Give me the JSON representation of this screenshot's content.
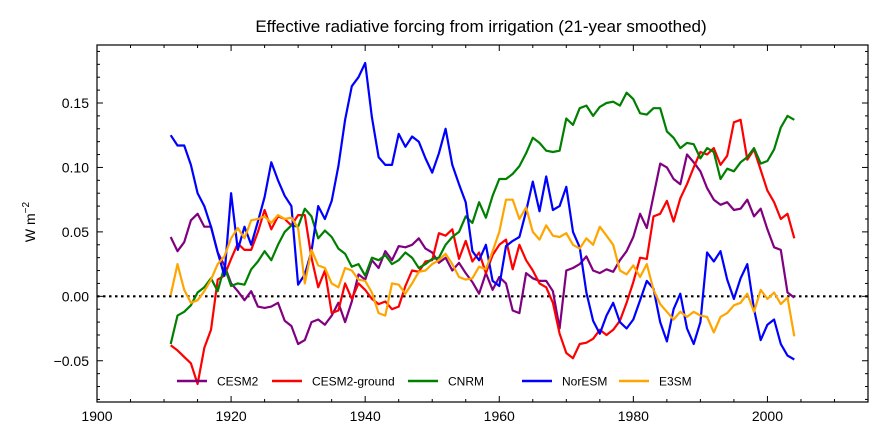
{
  "chart_data": {
    "type": "line",
    "title": "Effective radiative forcing from irrigation (21-year smoothed)",
    "xlabel": "",
    "ylabel": "W m",
    "ylabel_superscript": "−2",
    "xlim": [
      1900,
      2015
    ],
    "ylim": [
      -0.082,
      0.195
    ],
    "xticks": [
      1900,
      1920,
      1940,
      1960,
      1980,
      2000
    ],
    "xtick_labels": [
      "1900",
      "1920",
      "1940",
      "1960",
      "1980",
      "2000"
    ],
    "yticks": [
      -0.05,
      0.0,
      0.05,
      0.1,
      0.15
    ],
    "ytick_labels": [
      "−0.05",
      "0.00",
      "0.05",
      "0.10",
      "0.15"
    ],
    "grid": false,
    "legend_position": "bottom-center",
    "zero_line": {
      "y": 0,
      "style": "dotted",
      "color": "#000000"
    },
    "series": [
      {
        "name": "CESM2",
        "color": "#800080",
        "x": [
          1911,
          1912,
          1913,
          1914,
          1915,
          1916,
          1917,
          1918,
          1919,
          1920,
          1921,
          1922,
          1923,
          1924,
          1925,
          1926,
          1927,
          1928,
          1929,
          1930,
          1931,
          1932,
          1933,
          1934,
          1935,
          1936,
          1937,
          1938,
          1939,
          1940,
          1941,
          1942,
          1943,
          1944,
          1945,
          1946,
          1947,
          1948,
          1949,
          1950,
          1951,
          1952,
          1953,
          1954,
          1955,
          1956,
          1957,
          1958,
          1959,
          1960,
          1961,
          1962,
          1963,
          1964,
          1965,
          1966,
          1967,
          1968,
          1969,
          1970,
          1971,
          1972,
          1973,
          1974,
          1975,
          1976,
          1977,
          1978,
          1979,
          1980,
          1981,
          1982,
          1983,
          1984,
          1985,
          1986,
          1987,
          1988,
          1989,
          1990,
          1991,
          1992,
          1993,
          1994,
          1995,
          1996,
          1997,
          1998,
          1999,
          2000,
          2001,
          2002,
          2003,
          2004
        ],
        "y": [
          0.046,
          0.035,
          0.042,
          0.059,
          0.064,
          0.054,
          0.054,
          0.034,
          0.024,
          0.01,
          0.004,
          -0.003,
          0.004,
          -0.008,
          -0.009,
          -0.008,
          -0.005,
          -0.019,
          -0.023,
          -0.037,
          -0.034,
          -0.02,
          -0.018,
          -0.022,
          -0.015,
          -0.005,
          -0.02,
          -0.004,
          0.017,
          0.013,
          0.028,
          0.022,
          0.035,
          0.028,
          0.039,
          0.038,
          0.04,
          0.045,
          0.037,
          0.034,
          0.026,
          0.03,
          0.02,
          0.026,
          0.018,
          0.011,
          0.002,
          0.018,
          0.005,
          0.015,
          0.01,
          -0.011,
          -0.013,
          0.018,
          0.014,
          0.012,
          0.012,
          0.004,
          -0.025,
          0.02,
          0.022,
          0.025,
          0.031,
          0.02,
          0.018,
          0.021,
          0.019,
          0.028,
          0.035,
          0.046,
          0.064,
          0.053,
          0.078,
          0.103,
          0.1,
          0.091,
          0.087,
          0.11,
          0.104,
          0.097,
          0.084,
          0.075,
          0.071,
          0.073,
          0.067,
          0.068,
          0.075,
          0.062,
          0.068,
          0.052,
          0.038,
          0.036,
          0.003,
          -0.001
        ]
      },
      {
        "name": "CESM2-ground",
        "color": "#ff0000",
        "x": [
          1911,
          1912,
          1913,
          1914,
          1915,
          1916,
          1917,
          1918,
          1919,
          1920,
          1921,
          1922,
          1923,
          1924,
          1925,
          1926,
          1927,
          1928,
          1929,
          1930,
          1931,
          1932,
          1933,
          1934,
          1935,
          1936,
          1937,
          1938,
          1939,
          1940,
          1941,
          1942,
          1943,
          1944,
          1945,
          1946,
          1947,
          1948,
          1949,
          1950,
          1951,
          1952,
          1953,
          1954,
          1955,
          1956,
          1957,
          1958,
          1959,
          1960,
          1961,
          1962,
          1963,
          1964,
          1965,
          1966,
          1967,
          1968,
          1969,
          1970,
          1971,
          1972,
          1973,
          1974,
          1975,
          1976,
          1977,
          1978,
          1979,
          1980,
          1981,
          1982,
          1983,
          1984,
          1985,
          1986,
          1987,
          1988,
          1989,
          1990,
          1991,
          1992,
          1993,
          1994,
          1995,
          1996,
          1997,
          1998,
          1999,
          2000,
          2001,
          2002,
          2003,
          2004
        ],
        "y": [
          -0.038,
          -0.042,
          -0.047,
          -0.052,
          -0.068,
          -0.04,
          -0.026,
          0.013,
          0.016,
          0.029,
          0.041,
          0.036,
          0.036,
          0.05,
          0.067,
          0.052,
          0.062,
          0.06,
          0.055,
          0.063,
          0.063,
          0.03,
          0.007,
          0.02,
          -0.013,
          -0.011,
          0.01,
          -0.002,
          0.01,
          0.005,
          -0.002,
          -0.006,
          -0.004,
          -0.01,
          -0.008,
          0.008,
          0.02,
          0.019,
          0.027,
          0.028,
          0.049,
          0.047,
          0.052,
          0.029,
          0.043,
          0.027,
          0.034,
          0.018,
          0.032,
          0.04,
          0.044,
          0.021,
          0.04,
          0.028,
          0.02,
          0.01,
          0.007,
          -0.005,
          -0.029,
          -0.044,
          -0.048,
          -0.037,
          -0.036,
          -0.033,
          -0.026,
          -0.03,
          -0.026,
          -0.019,
          -0.005,
          0.011,
          0.03,
          0.029,
          0.062,
          0.064,
          0.074,
          0.058,
          0.076,
          0.087,
          0.1,
          0.112,
          0.11,
          0.115,
          0.102,
          0.109,
          0.135,
          0.137,
          0.106,
          0.114,
          0.098,
          0.082,
          0.073,
          0.06,
          0.064,
          0.045
        ]
      },
      {
        "name": "CNRM",
        "color": "#008000",
        "x": [
          1911,
          1912,
          1913,
          1914,
          1915,
          1916,
          1917,
          1918,
          1919,
          1920,
          1921,
          1922,
          1923,
          1924,
          1925,
          1926,
          1927,
          1928,
          1929,
          1930,
          1931,
          1932,
          1933,
          1934,
          1935,
          1936,
          1937,
          1938,
          1939,
          1940,
          1941,
          1942,
          1943,
          1944,
          1945,
          1946,
          1947,
          1948,
          1949,
          1950,
          1951,
          1952,
          1953,
          1954,
          1955,
          1956,
          1957,
          1958,
          1959,
          1960,
          1961,
          1962,
          1963,
          1964,
          1965,
          1966,
          1967,
          1968,
          1969,
          1970,
          1971,
          1972,
          1973,
          1974,
          1975,
          1976,
          1977,
          1978,
          1979,
          1980,
          1981,
          1982,
          1983,
          1984,
          1985,
          1986,
          1987,
          1988,
          1989,
          1990,
          1991,
          1992,
          1993,
          1994,
          1995,
          1996,
          1997,
          1998,
          1999,
          2000,
          2001,
          2002,
          2003,
          2004
        ],
        "y": [
          -0.037,
          -0.015,
          -0.012,
          -0.007,
          0.003,
          0.007,
          0.014,
          0.004,
          0.023,
          0.008,
          0.01,
          0.009,
          0.021,
          0.027,
          0.035,
          0.028,
          0.04,
          0.05,
          0.055,
          0.054,
          0.068,
          0.062,
          0.045,
          0.051,
          0.046,
          0.037,
          0.033,
          0.023,
          0.025,
          0.016,
          0.03,
          0.028,
          0.032,
          0.025,
          0.028,
          0.034,
          0.03,
          0.022,
          0.025,
          0.029,
          0.03,
          0.04,
          0.046,
          0.05,
          0.062,
          0.057,
          0.073,
          0.061,
          0.078,
          0.091,
          0.091,
          0.095,
          0.101,
          0.111,
          0.123,
          0.119,
          0.113,
          0.112,
          0.113,
          0.138,
          0.133,
          0.146,
          0.148,
          0.14,
          0.147,
          0.15,
          0.151,
          0.148,
          0.158,
          0.153,
          0.142,
          0.141,
          0.146,
          0.146,
          0.128,
          0.123,
          0.115,
          0.119,
          0.118,
          0.107,
          0.115,
          0.112,
          0.091,
          0.099,
          0.097,
          0.104,
          0.108,
          0.115,
          0.103,
          0.105,
          0.114,
          0.131,
          0.14,
          0.137
        ]
      },
      {
        "name": "NorESM",
        "color": "#0000ff",
        "x": [
          1911,
          1912,
          1913,
          1914,
          1915,
          1916,
          1917,
          1918,
          1919,
          1920,
          1921,
          1922,
          1923,
          1924,
          1925,
          1926,
          1927,
          1928,
          1929,
          1930,
          1931,
          1932,
          1933,
          1934,
          1935,
          1936,
          1937,
          1938,
          1939,
          1940,
          1941,
          1942,
          1943,
          1944,
          1945,
          1946,
          1947,
          1948,
          1949,
          1950,
          1951,
          1952,
          1953,
          1954,
          1955,
          1956,
          1957,
          1958,
          1959,
          1960,
          1961,
          1962,
          1963,
          1964,
          1965,
          1966,
          1967,
          1968,
          1969,
          1970,
          1971,
          1972,
          1973,
          1974,
          1975,
          1976,
          1977,
          1978,
          1979,
          1980,
          1981,
          1982,
          1983,
          1984,
          1985,
          1986,
          1987,
          1988,
          1989,
          1990,
          1991,
          1992,
          1993,
          1994,
          1995,
          1996,
          1997,
          1998,
          1999,
          2000,
          2001,
          2002,
          2003,
          2004
        ],
        "y": [
          0.125,
          0.117,
          0.117,
          0.102,
          0.08,
          0.07,
          0.054,
          0.034,
          0.016,
          0.08,
          0.036,
          0.054,
          0.04,
          0.058,
          0.077,
          0.104,
          0.09,
          0.078,
          0.07,
          0.009,
          0.017,
          0.035,
          0.07,
          0.06,
          0.074,
          0.101,
          0.137,
          0.163,
          0.17,
          0.181,
          0.139,
          0.108,
          0.102,
          0.102,
          0.126,
          0.116,
          0.124,
          0.12,
          0.107,
          0.096,
          0.111,
          0.13,
          0.102,
          0.087,
          0.073,
          0.035,
          0.028,
          0.04,
          0.012,
          0.008,
          0.039,
          0.043,
          0.046,
          0.066,
          0.089,
          0.066,
          0.093,
          0.067,
          0.07,
          0.085,
          0.05,
          0.038,
          0.003,
          -0.019,
          -0.029,
          -0.015,
          -0.005,
          -0.02,
          -0.025,
          -0.018,
          -0.003,
          0.012,
          0.006,
          -0.02,
          -0.035,
          -0.01,
          0.002,
          -0.025,
          -0.037,
          -0.02,
          0.034,
          0.027,
          0.035,
          0.013,
          -0.002,
          0.014,
          0.025,
          -0.01,
          -0.034,
          -0.022,
          -0.018,
          -0.037,
          -0.046,
          -0.049
        ]
      },
      {
        "name": "E3SM",
        "color": "#ffa500",
        "x": [
          1911,
          1912,
          1913,
          1914,
          1915,
          1916,
          1917,
          1918,
          1919,
          1920,
          1921,
          1922,
          1923,
          1924,
          1925,
          1926,
          1927,
          1928,
          1929,
          1930,
          1931,
          1932,
          1933,
          1934,
          1935,
          1936,
          1937,
          1938,
          1939,
          1940,
          1941,
          1942,
          1943,
          1944,
          1945,
          1946,
          1947,
          1948,
          1949,
          1950,
          1951,
          1952,
          1953,
          1954,
          1955,
          1956,
          1957,
          1958,
          1959,
          1960,
          1961,
          1962,
          1963,
          1964,
          1965,
          1966,
          1967,
          1968,
          1969,
          1970,
          1971,
          1972,
          1973,
          1974,
          1975,
          1976,
          1977,
          1978,
          1979,
          1980,
          1981,
          1982,
          1983,
          1984,
          1985,
          1986,
          1987,
          1988,
          1989,
          1990,
          1991,
          1992,
          1993,
          1994,
          1995,
          1996,
          1997,
          1998,
          1999,
          2000,
          2001,
          2002,
          2003,
          2004
        ],
        "y": [
          0.001,
          0.025,
          0.005,
          -0.005,
          -0.003,
          0.004,
          0.013,
          0.025,
          0.031,
          0.045,
          0.053,
          0.045,
          0.059,
          0.06,
          0.062,
          0.057,
          0.063,
          0.06,
          0.061,
          0.053,
          0.01,
          0.036,
          0.024,
          0.022,
          0.01,
          0.007,
          0.022,
          0.02,
          0.013,
          0.012,
          0.003,
          -0.013,
          -0.015,
          0.01,
          0.009,
          0.002,
          0.01,
          0.019,
          0.02,
          0.025,
          0.028,
          0.033,
          0.025,
          0.015,
          0.013,
          0.014,
          0.023,
          0.021,
          0.035,
          0.05,
          0.075,
          0.075,
          0.06,
          0.069,
          0.05,
          0.044,
          0.055,
          0.047,
          0.046,
          0.049,
          0.04,
          0.037,
          0.045,
          0.04,
          0.054,
          0.047,
          0.04,
          0.02,
          0.017,
          0.024,
          0.015,
          0.025,
          0.005,
          -0.006,
          -0.012,
          -0.018,
          -0.012,
          -0.016,
          -0.012,
          -0.015,
          -0.016,
          -0.028,
          -0.016,
          -0.013,
          -0.007,
          -0.005,
          0.002,
          -0.012,
          0.005,
          -0.002,
          0.003,
          -0.006,
          -0.001,
          -0.031
        ]
      }
    ]
  }
}
